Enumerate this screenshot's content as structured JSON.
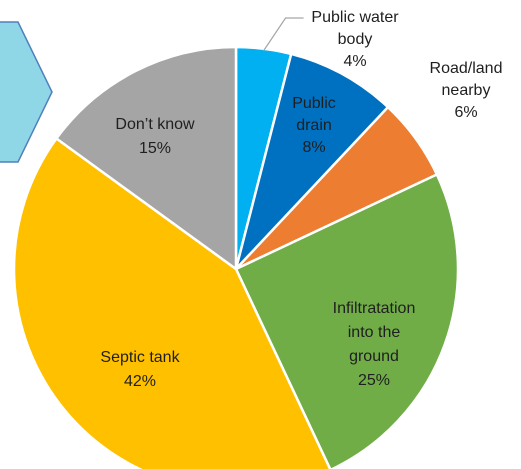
{
  "chart_data": {
    "type": "pie",
    "title": "",
    "slices": [
      {
        "label": "Public water body",
        "label_lines": [
          "Public water",
          "body"
        ],
        "value": 4,
        "value_label": "4%",
        "color": "#00B0F0"
      },
      {
        "label": "Public drain",
        "label_lines": [
          "Public",
          "drain"
        ],
        "value": 8,
        "value_label": "8%",
        "color": "#0070C0"
      },
      {
        "label": "Road/land nearby",
        "label_lines": [
          "Road/land",
          "nearby"
        ],
        "value": 6,
        "value_label": "6%",
        "color": "#ED7D31"
      },
      {
        "label": "Infiltratation into the ground",
        "label_lines": [
          "Infiltratation",
          "into the",
          "ground"
        ],
        "value": 25,
        "value_label": "25%",
        "color": "#70AD47"
      },
      {
        "label": "Septic tank",
        "label_lines": [
          "Septic tank"
        ],
        "value": 42,
        "value_label": "42%",
        "color": "#FFC000"
      },
      {
        "label": "Don’t know",
        "label_lines": [
          "Don’t know"
        ],
        "value": 15,
        "value_label": "15%",
        "color": "#A5A5A5"
      }
    ]
  },
  "decor": {
    "arrow_fill": "#8FD6E6",
    "arrow_stroke": "#4F81BD"
  }
}
